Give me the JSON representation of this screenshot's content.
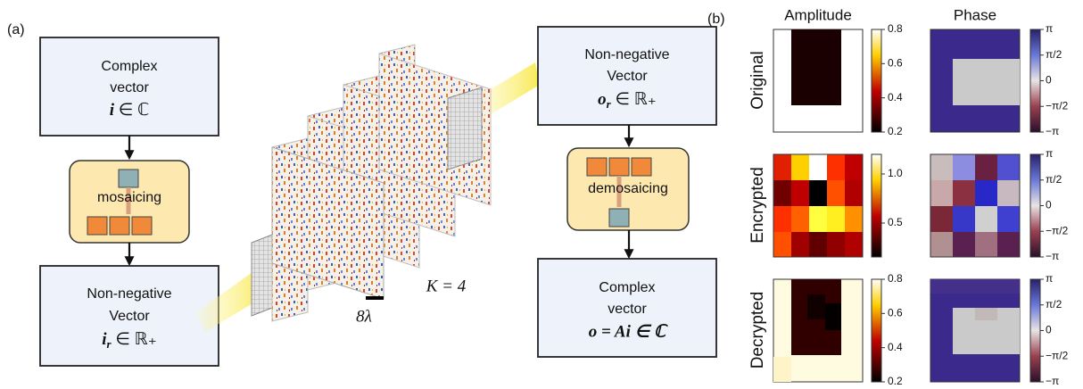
{
  "panel_a": {
    "label": "(a)",
    "input_box": {
      "line1": "Complex",
      "line2": "vector",
      "symbol": "i",
      "relation": "∈ ℂ"
    },
    "mosaic_label": "mosaicing",
    "intensity_box": {
      "line1": "Non-negative",
      "line2": "Vector",
      "symbol": "i",
      "subscript": "r",
      "relation": "∈ ℝ₊"
    },
    "pitch_label": "8λ",
    "layers_label": "K = 4",
    "output_box": {
      "line1": "Non-negative",
      "line2": "Vector",
      "symbol": "o",
      "subscript": "r",
      "relation": "∈ ℝ₊"
    },
    "demosaic_label": "demosaicing",
    "result_box": {
      "line1": "Complex",
      "line2": "vector",
      "equation": "o = Ai ∈ ℂ"
    }
  },
  "panel_b": {
    "label": "(b)",
    "columns": [
      "Amplitude",
      "Phase"
    ],
    "rows": [
      "Original",
      "Encrypted",
      "Decrypted"
    ],
    "amplitude_colorbars": [
      [
        "0.8",
        "0.6",
        "0.4",
        "0.2"
      ],
      [
        "1.0",
        "0.5"
      ],
      [
        "0.8",
        "0.6",
        "0.4",
        "0.2"
      ]
    ],
    "phase_colorbar": [
      "π",
      "π/2",
      "0",
      "−π/2",
      "−π"
    ]
  }
}
